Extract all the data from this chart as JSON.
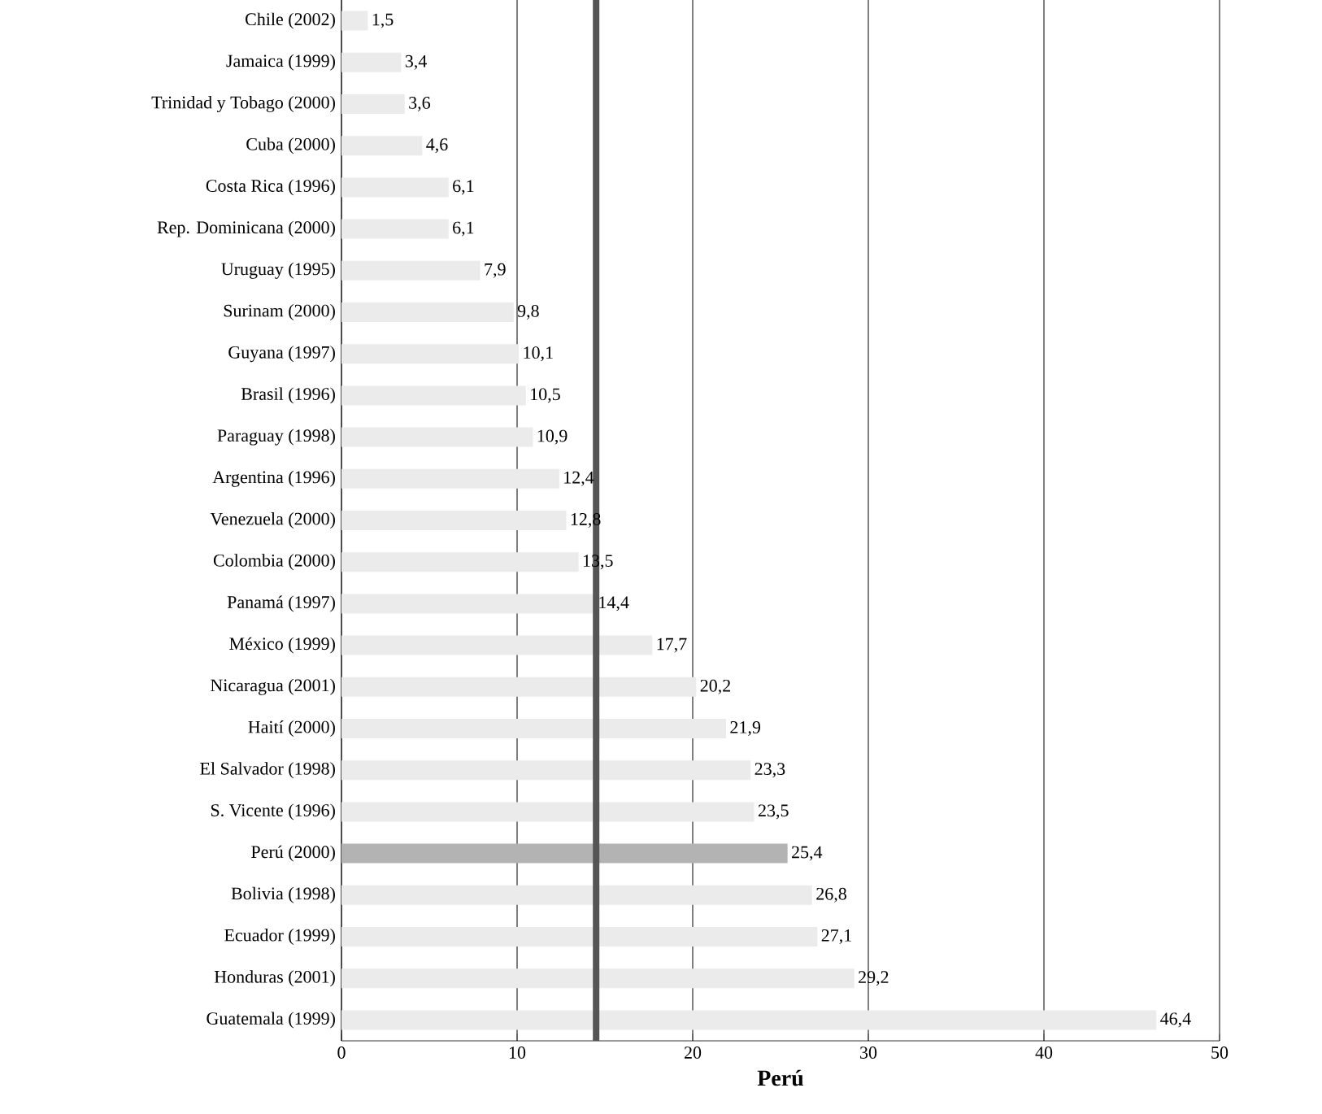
{
  "chart_data": {
    "type": "bar",
    "orientation": "horizontal",
    "xlabel": "Perú",
    "categories": [
      "Chile (2002)",
      "Jamaica (1999)",
      "Trinidad y Tobago (2000)",
      "Cuba (2000)",
      "Costa Rica (1996)",
      "Rep. Dominicana (2000)",
      "Uruguay (1995)",
      "Surinam (2000)",
      "Guyana (1997)",
      "Brasil (1996)",
      "Paraguay (1998)",
      "Argentina (1996)",
      "Venezuela (2000)",
      "Colombia (2000)",
      "Panamá (1997)",
      "México (1999)",
      "Nicaragua (2001)",
      "Haití (2000)",
      "El Salvador (1998)",
      "S. Vicente (1996)",
      "Perú (2000)",
      "Bolivia (1998)",
      "Ecuador (1999)",
      "Honduras (2001)",
      "Guatemala (1999)"
    ],
    "values": [
      1.5,
      3.4,
      3.6,
      4.6,
      6.1,
      6.1,
      7.9,
      9.8,
      10.1,
      10.5,
      10.9,
      12.4,
      12.8,
      13.5,
      14.4,
      17.7,
      20.2,
      21.9,
      23.3,
      23.5,
      25.4,
      26.8,
      27.1,
      29.2,
      46.4
    ],
    "value_labels": [
      "1,5",
      "3,4",
      "3,6",
      "4,6",
      "6,1",
      "6,1",
      "7,9",
      "9,8",
      "10,1",
      "10,5",
      "10,9",
      "12,4",
      "12,8",
      "13,5",
      "14,4",
      "17,7",
      "20,2",
      "21,9",
      "23,3",
      "23,5",
      "25,4",
      "26,8",
      "27,1",
      "29,2",
      "46,4"
    ],
    "colors": [
      "#ebebeb",
      "#ebebeb",
      "#ebebeb",
      "#ebebeb",
      "#ebebeb",
      "#ebebeb",
      "#ebebeb",
      "#ebebeb",
      "#ebebeb",
      "#ebebeb",
      "#ebebeb",
      "#ebebeb",
      "#ebebeb",
      "#ebebeb",
      "#ebebeb",
      "#ebebeb",
      "#ebebeb",
      "#ebebeb",
      "#ebebeb",
      "#ebebeb",
      "#b3b3b3",
      "#ebebeb",
      "#ebebeb",
      "#ebebeb",
      "#ebebeb"
    ],
    "xlim": [
      0,
      50
    ],
    "xticks": [
      0,
      10,
      20,
      30,
      40,
      50
    ],
    "grid": "x",
    "ref_lines": [
      {
        "axis": "x",
        "value": 14.5,
        "color": "#555555"
      }
    ]
  }
}
